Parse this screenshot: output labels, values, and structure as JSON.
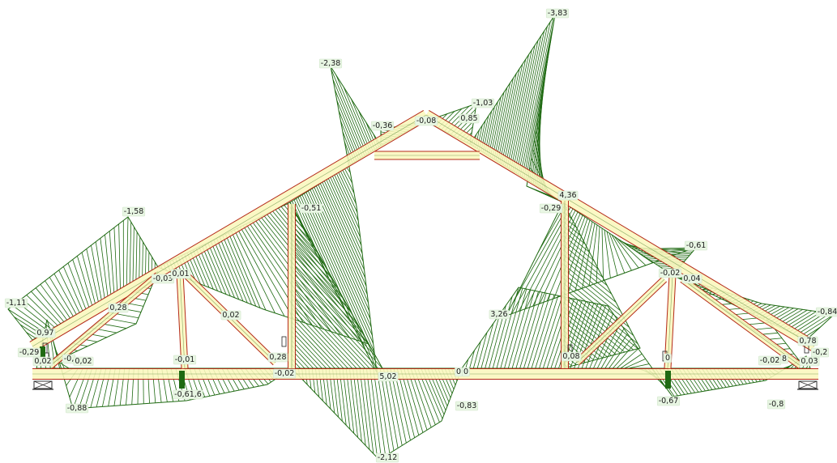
{
  "colors": {
    "member_fill": "#fbf7bd",
    "member_edge": "#b52a1a",
    "diagram": "#1f6a12",
    "label_bg": "#e8f6e3",
    "support": "#333333"
  },
  "labels": {
    "l01": "-3,83",
    "l02": "-2,38",
    "l03": "-1,03",
    "l04": "-0,36",
    "l05": "-0,08",
    "l06": "0,85",
    "l07": "4,36",
    "l08": "-0,29",
    "l09": "-1,58",
    "l10": "-0,51",
    "l11": "-0,61",
    "l12": "-0,03",
    "l13": "0,01",
    "l14": "-0,02",
    "l15": "0,04",
    "l16": "-1,11",
    "l17": "0,28",
    "l18": "-0,84",
    "l19": "0,97",
    "l20": "3,26",
    "l21": "0,02",
    "l22": "0,78",
    "l23": "-0,29",
    "l24": "-0,2",
    "l25": "0,02",
    "l26": "-0,",
    "l27": "0,02",
    "l28": "-0,01",
    "l29": "0,28",
    "l30": "0,08",
    "l31": "0",
    "l32": "-0,02",
    "l33": "-0,02",
    "l34": "0,03",
    "l35": "5,02",
    "l36": "0",
    "l37": "0",
    "l38": "-0,61,6",
    "l39": "-0,88",
    "l40": "-0,83",
    "l41": "-0,67",
    "l42": "-0,8",
    "l43": "-2,12",
    "l44": "8"
  }
}
